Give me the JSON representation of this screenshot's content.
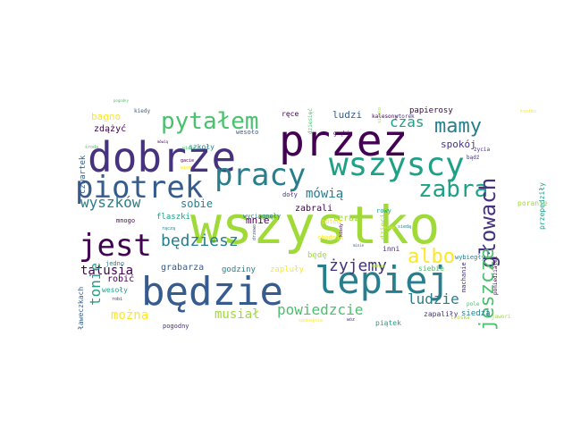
{
  "colors": {
    "background": "#ffffff",
    "palette": [
      "#440154",
      "#46327e",
      "#365c8d",
      "#277f8e",
      "#1fa187",
      "#4ac16d",
      "#a0da39",
      "#fde725"
    ]
  },
  "words": [
    {
      "text": "wszystko",
      "color": "#a0da39"
    },
    {
      "text": "będzie",
      "color": "#365c8d"
    },
    {
      "text": "lepiej",
      "color": "#277f8e"
    },
    {
      "text": "przez",
      "color": "#440154"
    },
    {
      "text": "dobrze",
      "color": "#46327e"
    },
    {
      "text": "wszyscy",
      "color": "#1fa187"
    },
    {
      "text": "piotrek",
      "color": "#365c8d"
    },
    {
      "text": "pracy",
      "color": "#277f8e"
    },
    {
      "text": "jest",
      "color": "#440154"
    },
    {
      "text": "pytałem",
      "color": "#4ac16d"
    },
    {
      "text": "zabra",
      "color": "#1fa187"
    },
    {
      "text": "mamy",
      "color": "#277f8e"
    },
    {
      "text": "głowach",
      "color": "#46327e"
    },
    {
      "text": "jeszcze",
      "color": "#4ac16d"
    },
    {
      "text": "albo",
      "color": "#fde725"
    },
    {
      "text": "będziesz",
      "color": "#277f8e"
    },
    {
      "text": "żyjemy",
      "color": "#46327e"
    },
    {
      "text": "tatusia",
      "color": "#440154"
    },
    {
      "text": "wyszków",
      "color": "#277f8e"
    },
    {
      "text": "tonie",
      "color": "#1fa187"
    },
    {
      "text": "ludzie",
      "color": "#277f8e"
    },
    {
      "text": "czas",
      "color": "#1fa187"
    },
    {
      "text": "mówią",
      "color": "#277f8e"
    },
    {
      "text": "można",
      "color": "#fde725"
    },
    {
      "text": "musiał",
      "color": "#a0da39"
    },
    {
      "text": "powiedzcie",
      "color": "#4ac16d"
    },
    {
      "text": "spokój",
      "color": "#46327e"
    },
    {
      "text": "bagno",
      "color": "#fde725"
    },
    {
      "text": "zdążyć",
      "color": "#440154"
    },
    {
      "text": "sobie",
      "color": "#277f8e"
    },
    {
      "text": "mnie",
      "color": "#440154"
    },
    {
      "text": "zabrali",
      "color": "#440154"
    },
    {
      "text": "ludzi",
      "color": "#365c8d"
    },
    {
      "text": "papierosy",
      "color": "#440154"
    },
    {
      "text": "grabarza",
      "color": "#365c8d"
    },
    {
      "text": "godziny",
      "color": "#277f8e"
    },
    {
      "text": "zapluły",
      "color": "#fde725"
    },
    {
      "text": "teraz",
      "color": "#a0da39"
    },
    {
      "text": "wyciągnęły",
      "color": "#277f8e"
    },
    {
      "text": "flaszki",
      "color": "#1fa187"
    },
    {
      "text": "będę",
      "color": "#a0da39"
    },
    {
      "text": "wesoło",
      "color": "#365c8d"
    },
    {
      "text": "szkoły",
      "color": "#277f8e"
    },
    {
      "text": "ręce",
      "color": "#440154"
    },
    {
      "text": "czwartek",
      "color": "#365c8d"
    },
    {
      "text": "mnogo",
      "color": "#440154"
    },
    {
      "text": "robić",
      "color": "#440154"
    },
    {
      "text": "jedno",
      "color": "#277f8e"
    },
    {
      "text": "wesoły",
      "color": "#1fa187"
    },
    {
      "text": "ławeczkach",
      "color": "#365c8d"
    },
    {
      "text": "pogodny",
      "color": "#46327e"
    },
    {
      "text": "piątek",
      "color": "#1fa187"
    },
    {
      "text": "zapaliły",
      "color": "#46327e"
    },
    {
      "text": "siedzą",
      "color": "#277f8e"
    },
    {
      "text": "rowy",
      "color": "#1fa187"
    },
    {
      "text": "doły",
      "color": "#46327e"
    },
    {
      "text": "potem",
      "color": "#fde725"
    },
    {
      "text": "inni",
      "color": "#46327e"
    },
    {
      "text": "siebie",
      "color": "#4ac16d"
    },
    {
      "text": "chodnik",
      "color": "#fde725"
    },
    {
      "text": "dzieci",
      "color": "#a0da39"
    },
    {
      "text": "wybiegły",
      "color": "#277f8e"
    },
    {
      "text": "przepędziły",
      "color": "#1fa187"
    },
    {
      "text": "poranie",
      "color": "#a0da39"
    },
    {
      "text": "życia",
      "color": "#46327e"
    },
    {
      "text": "bądź",
      "color": "#46327e"
    },
    {
      "text": "machanie",
      "color": "#46327e"
    },
    {
      "text": "poniedziałek",
      "color": "#440154"
    },
    {
      "text": "pole",
      "color": "#4ac16d"
    },
    {
      "text": "jawori",
      "color": "#a0da39"
    },
    {
      "text": "troska",
      "color": "#a0da39"
    },
    {
      "text": "kiedy",
      "color": "#365c8d"
    },
    {
      "text": "kalesony",
      "color": "#440154"
    },
    {
      "text": "wtorek",
      "color": "#46327e"
    },
    {
      "text": "gnębi",
      "color": "#440154"
    },
    {
      "text": "dziesięć",
      "color": "#4ac16d"
    },
    {
      "text": "kiedy",
      "color": "#440154"
    },
    {
      "text": "środa",
      "color": "#4ac16d"
    },
    {
      "text": "robi",
      "color": "#46327e"
    },
    {
      "text": "rączą",
      "color": "#277f8e"
    },
    {
      "text": "drzewo",
      "color": "#365c8d"
    },
    {
      "text": "wiele",
      "color": "#4ac16d"
    },
    {
      "text": "gacie",
      "color": "#440154"
    },
    {
      "text": "wiem",
      "color": "#fde725"
    },
    {
      "text": "spokojnie",
      "color": "#fde725"
    },
    {
      "text": "wóz",
      "color": "#46327e"
    },
    {
      "text": "sianko",
      "color": "#a0da39"
    },
    {
      "text": "siedą",
      "color": "#277f8e"
    },
    {
      "text": "minie",
      "color": "#a0da39"
    },
    {
      "text": "krótko",
      "color": "#fde725"
    },
    {
      "text": "pogodny",
      "color": "#4ac16d"
    },
    {
      "text": "mówią",
      "color": "#440154"
    },
    {
      "text": "kiedy",
      "color": "#fde725"
    },
    {
      "text": "minie",
      "color": "#365c8d"
    }
  ]
}
